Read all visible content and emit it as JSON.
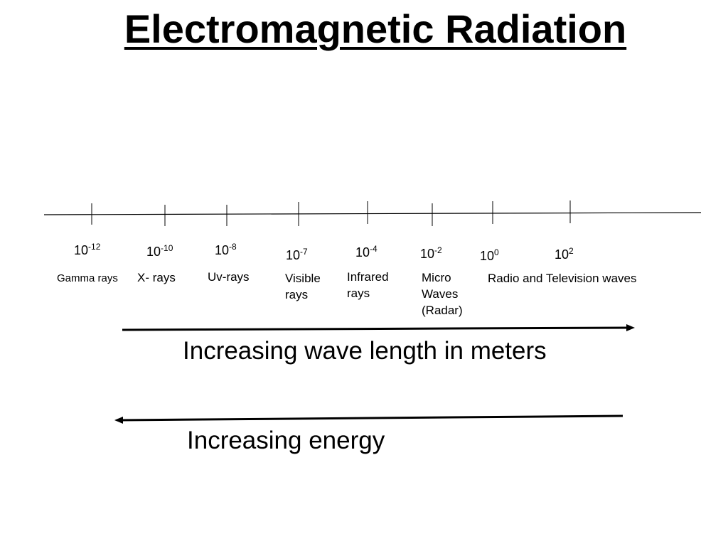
{
  "title": "Electromagnetic Radiation",
  "scale": {
    "exponents": [
      {
        "base": "10",
        "power": "-12"
      },
      {
        "base": "10",
        "power": "-10"
      },
      {
        "base": "10",
        "power": "-8"
      },
      {
        "base": "10",
        "power": "-7"
      },
      {
        "base": "10",
        "power": "-4"
      },
      {
        "base": "10",
        "power": "-2"
      },
      {
        "base": "10",
        "power": "0"
      },
      {
        "base": "10",
        "power": "2"
      }
    ],
    "bands": [
      {
        "label": "Gamma rays"
      },
      {
        "label": "X- rays"
      },
      {
        "label": "Uv-rays"
      },
      {
        "label": "Visible rays"
      },
      {
        "label": "Infrared rays"
      },
      {
        "label": "Micro Waves (Radar)"
      },
      {
        "label": "Radio and Television waves"
      }
    ]
  },
  "arrows": {
    "wavelength_label": "Increasing wave length in meters",
    "energy_label": "Increasing energy"
  }
}
